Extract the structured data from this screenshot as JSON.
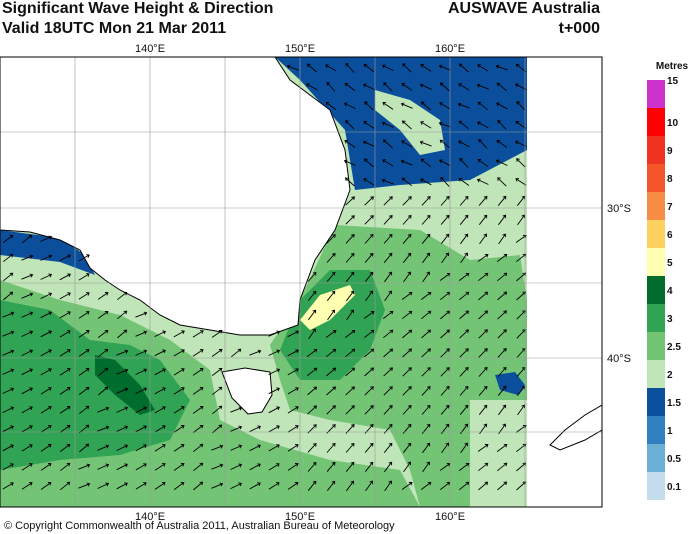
{
  "header": {
    "title": "Significant Wave Height & Direction",
    "subtitle": "Valid 18UTC Mon 21 Mar 2011",
    "product": "AUSWAVE Australia",
    "timestep": "t+000"
  },
  "axes": {
    "lon_labels": [
      "140°E",
      "150°E",
      "160°E"
    ],
    "lat_labels": [
      "30°S",
      "40°S"
    ]
  },
  "colorbar": {
    "unit": "Metres",
    "levels": [
      "15",
      "10",
      "9",
      "8",
      "7",
      "6",
      "5",
      "4",
      "3",
      "2.5",
      "2",
      "1.5",
      "1",
      "0.5",
      "0.1"
    ],
    "colors": [
      "#cc33cc",
      "#ff0000",
      "#ee3322",
      "#f4562a",
      "#f88c44",
      "#fdd060",
      "#ffffb2",
      "#006d2c",
      "#31a354",
      "#74c476",
      "#bfe5b8",
      "#0b4f9c",
      "#2f7fc1",
      "#6baed6",
      "#c3dcee"
    ]
  },
  "footer": {
    "copyright": "© Copyright Commonwealth of Australia 2011, Australian Bureau of Meteorology"
  }
}
